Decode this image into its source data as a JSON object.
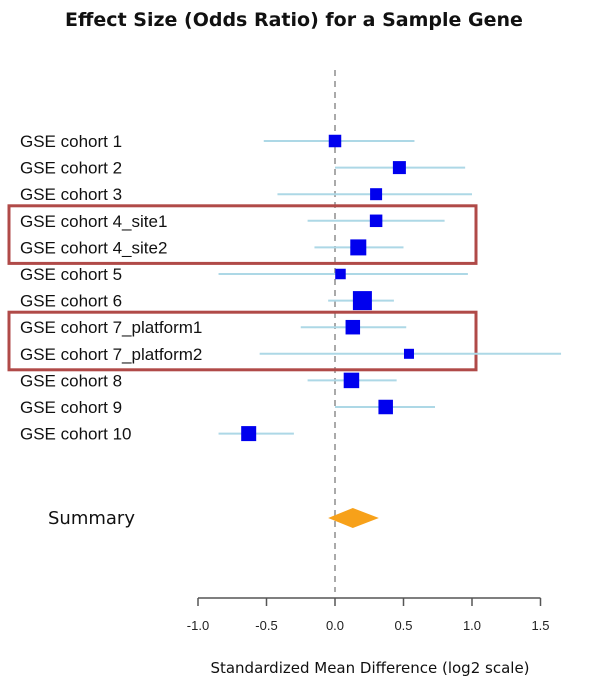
{
  "chart_data": {
    "type": "forest",
    "title": "Effect Size (Odds Ratio) for a Sample Gene",
    "xlabel": "Standardized Mean Difference (log2 scale)",
    "xlim": [
      -1.0,
      1.75
    ],
    "xticks": [
      "-1.0",
      "-0.5",
      "0.0",
      "0.5",
      "1.0",
      "1.5"
    ],
    "xtick_values": [
      -1.0,
      -0.5,
      0.0,
      0.5,
      1.0,
      1.5
    ],
    "reference_line": 0.0,
    "colors": {
      "point": "#0000ee",
      "ci": "#add8e6",
      "summary": "#f7a11a",
      "highlight_box": "#b04a48",
      "reference": "#aaaaaa",
      "axis": "#555555"
    },
    "rows": [
      {
        "label": "GSE cohort 1",
        "estimate": 0.0,
        "ci_low": -0.52,
        "ci_high": 0.58,
        "weight": 0.55
      },
      {
        "label": "GSE cohort 2",
        "estimate": 0.47,
        "ci_low": 0.0,
        "ci_high": 0.95,
        "weight": 0.6
      },
      {
        "label": "GSE cohort 3",
        "estimate": 0.3,
        "ci_low": -0.42,
        "ci_high": 1.0,
        "weight": 0.5
      },
      {
        "label": "GSE cohort 4_site1",
        "estimate": 0.3,
        "ci_low": -0.2,
        "ci_high": 0.8,
        "weight": 0.55
      },
      {
        "label": "GSE cohort 4_site2",
        "estimate": 0.17,
        "ci_low": -0.15,
        "ci_high": 0.5,
        "weight": 0.9
      },
      {
        "label": "GSE cohort 5",
        "estimate": 0.04,
        "ci_low": -0.85,
        "ci_high": 0.97,
        "weight": 0.35
      },
      {
        "label": "GSE cohort 6",
        "estimate": 0.2,
        "ci_low": -0.05,
        "ci_high": 0.43,
        "weight": 1.2
      },
      {
        "label": "GSE cohort 7_platform1",
        "estimate": 0.13,
        "ci_low": -0.25,
        "ci_high": 0.52,
        "weight": 0.75
      },
      {
        "label": "GSE cohort 7_platform2",
        "estimate": 0.54,
        "ci_low": -0.55,
        "ci_high": 1.65,
        "weight": 0.3
      },
      {
        "label": "GSE cohort 8",
        "estimate": 0.12,
        "ci_low": -0.2,
        "ci_high": 0.45,
        "weight": 0.85
      },
      {
        "label": "GSE cohort 9",
        "estimate": 0.37,
        "ci_low": 0.0,
        "ci_high": 0.73,
        "weight": 0.75
      },
      {
        "label": "GSE cohort 10",
        "estimate": -0.63,
        "ci_low": -0.85,
        "ci_high": -0.3,
        "weight": 0.8
      }
    ],
    "highlight_groups": [
      [
        "GSE cohort 4_site1",
        "GSE cohort 4_site2"
      ],
      [
        "GSE cohort 7_platform1",
        "GSE cohort 7_platform2"
      ]
    ],
    "summary": {
      "label": "Summary",
      "estimate": 0.13,
      "ci_low": -0.05,
      "ci_high": 0.32
    }
  }
}
